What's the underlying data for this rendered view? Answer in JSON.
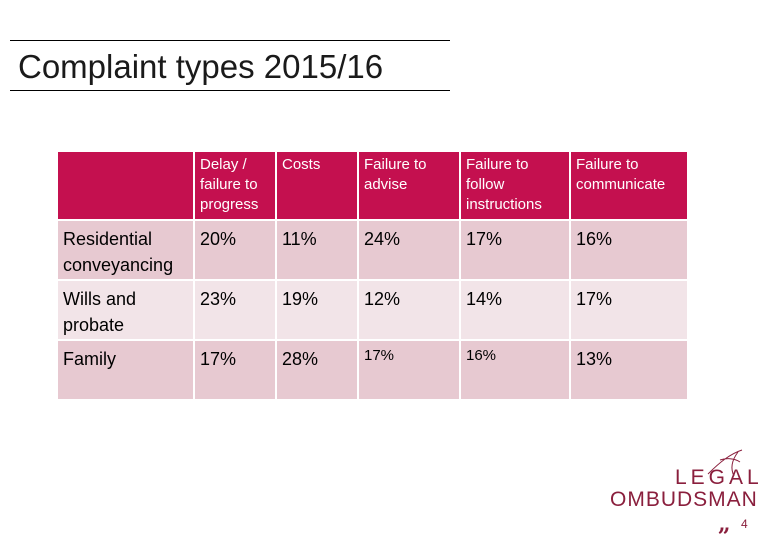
{
  "slide": {
    "title": "Complaint types 2015/16",
    "page_number": "4"
  },
  "table": {
    "corner": "",
    "headers": [
      "Delay / failure to progress",
      "Costs",
      "Failure to advise",
      "Failure to follow instructions",
      "Failure to communicate"
    ],
    "rows": [
      {
        "label": "Residential conveyancing",
        "values": [
          "20%",
          "11%",
          "24%",
          "17%",
          "16%"
        ]
      },
      {
        "label": "Wills and probate",
        "values": [
          "23%",
          "19%",
          "12%",
          "14%",
          "17%"
        ]
      },
      {
        "label": "Family",
        "values": [
          "17%",
          "28%",
          "17%",
          "16%",
          "13%"
        ]
      }
    ]
  },
  "logo": {
    "line1": "LEGAL",
    "line2": "OMBUDSMAN"
  },
  "colors": {
    "header_bg": "#c4104f",
    "row_dark": "#e7c9d1",
    "row_light": "#f2e4e8",
    "brand": "#8a1f3d"
  }
}
